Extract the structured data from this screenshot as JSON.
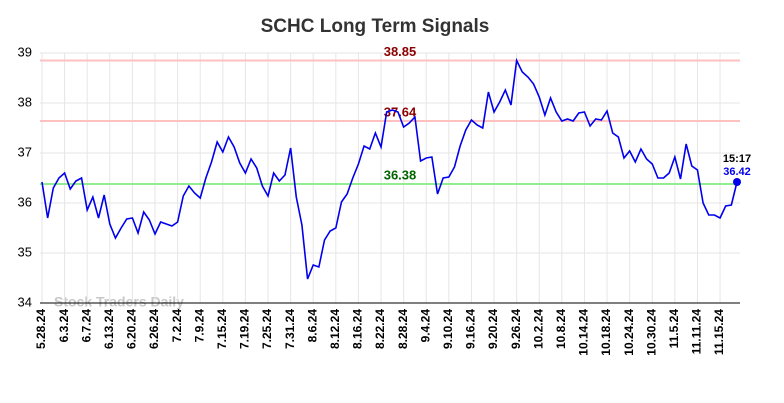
{
  "chart_data": {
    "type": "line",
    "title": "SCHC Long Term Signals",
    "watermark": "Stock Traders Daily",
    "categories": [
      "5.28.24",
      null,
      null,
      null,
      "6.3.24",
      null,
      null,
      null,
      "6.7.24",
      null,
      null,
      null,
      "6.13.24",
      null,
      null,
      null,
      "6.20.24",
      null,
      null,
      null,
      "6.26.24",
      null,
      null,
      null,
      "7.2.24",
      null,
      null,
      null,
      "7.9.24",
      null,
      null,
      null,
      "7.15.24",
      null,
      null,
      null,
      "7.19.24",
      null,
      null,
      null,
      "7.25.24",
      null,
      null,
      null,
      "7.31.24",
      null,
      null,
      null,
      "8.6.24",
      null,
      null,
      null,
      "8.12.24",
      null,
      null,
      null,
      "8.16.24",
      null,
      null,
      null,
      "8.22.24",
      null,
      null,
      null,
      "8.28.24",
      null,
      null,
      null,
      "9.4.24",
      null,
      null,
      null,
      "9.10.24",
      null,
      null,
      null,
      "9.16.24",
      null,
      null,
      null,
      "9.20.24",
      null,
      null,
      null,
      "9.26.24",
      null,
      null,
      null,
      "10.2.24",
      null,
      null,
      null,
      "10.8.24",
      null,
      null,
      null,
      "10.14.24",
      null,
      null,
      null,
      "10.18.24",
      null,
      null,
      null,
      "10.24.24",
      null,
      null,
      null,
      "10.30.24",
      null,
      null,
      null,
      "11.5.24",
      null,
      null,
      null,
      "11.11.24",
      null,
      null,
      null,
      "11.15.24",
      null,
      null,
      null
    ],
    "values": [
      36.42,
      35.7,
      36.3,
      36.5,
      36.6,
      36.28,
      36.44,
      36.5,
      35.86,
      36.12,
      35.7,
      36.16,
      35.58,
      35.3,
      35.5,
      35.68,
      35.7,
      35.4,
      35.82,
      35.66,
      35.38,
      35.62,
      35.58,
      35.54,
      35.62,
      36.14,
      36.34,
      36.2,
      36.1,
      36.5,
      36.82,
      37.22,
      37.02,
      37.32,
      37.12,
      36.8,
      36.6,
      36.88,
      36.7,
      36.34,
      36.14,
      36.6,
      36.44,
      36.56,
      37.1,
      36.12,
      35.56,
      34.48,
      34.76,
      34.72,
      35.26,
      35.44,
      35.5,
      36.02,
      36.18,
      36.5,
      36.78,
      37.14,
      37.08,
      37.4,
      37.12,
      37.82,
      37.86,
      37.82,
      37.52,
      37.6,
      37.72,
      36.84,
      36.9,
      36.92,
      36.18,
      36.5,
      36.52,
      36.72,
      37.14,
      37.46,
      37.66,
      37.56,
      37.5,
      38.22,
      37.82,
      38.02,
      38.26,
      37.96,
      38.85,
      38.62,
      38.52,
      38.38,
      38.12,
      37.76,
      38.1,
      37.82,
      37.64,
      37.68,
      37.64,
      37.8,
      37.82,
      37.54,
      37.68,
      37.66,
      37.84,
      37.4,
      37.32,
      36.9,
      37.04,
      36.82,
      37.08,
      36.88,
      36.78,
      36.5,
      36.5,
      36.6,
      36.92,
      36.48,
      37.18,
      36.74,
      36.66,
      36.0,
      35.76,
      35.76,
      35.7,
      35.94,
      35.96,
      36.42
    ],
    "color": "#0000ee",
    "last_time": "15:17",
    "reference_lines": [
      {
        "value": 38.85,
        "color": "#ffc0c0",
        "label_color": "#8b0000"
      },
      {
        "value": 37.64,
        "color": "#ffc0c0",
        "label_color": "#8b0000"
      },
      {
        "value": 36.38,
        "color": "#90ee90",
        "label_color": "#006400"
      }
    ],
    "ylim": [
      34,
      39
    ],
    "yticks": [
      34,
      35,
      36,
      37,
      38,
      39
    ],
    "grid": true
  }
}
